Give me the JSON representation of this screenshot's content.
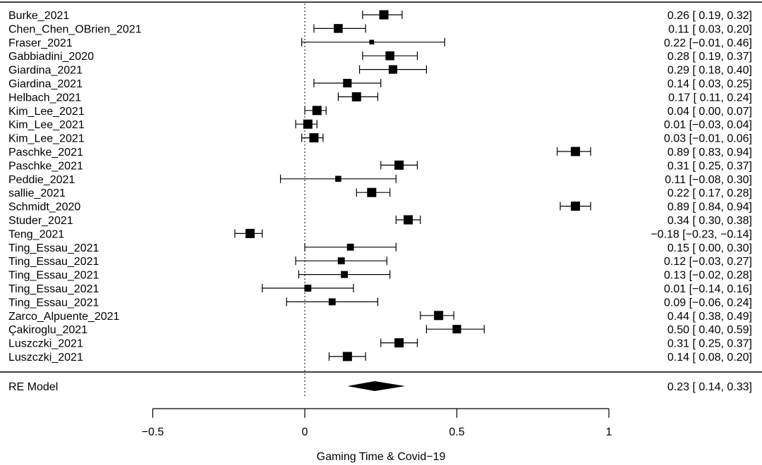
{
  "chart_data": {
    "type": "forest",
    "xlabel": "Gaming Time & Covid−19",
    "xlim": [
      -0.5,
      1
    ],
    "xticks": [
      {
        "value": -0.5,
        "label": "−0.5"
      },
      {
        "value": 0,
        "label": "0"
      },
      {
        "value": 0.5,
        "label": "0.5"
      },
      {
        "value": 1,
        "label": "1"
      }
    ],
    "reference_line": 0,
    "studies": [
      {
        "label": "Burke_2021",
        "est": 0.26,
        "lo": 0.19,
        "hi": 0.32,
        "ci_text": "0.26 [ 0.19,  0.32]",
        "weight": 1.0
      },
      {
        "label": "Chen_Chen_OBrien_2021",
        "est": 0.11,
        "lo": 0.03,
        "hi": 0.2,
        "ci_text": "0.11 [ 0.03,  0.20]",
        "weight": 0.95
      },
      {
        "label": "Fraser_2021",
        "est": 0.22,
        "lo": -0.01,
        "hi": 0.46,
        "ci_text": "0.22 [−0.01,  0.46]",
        "weight": 0.3
      },
      {
        "label": "Gabbiadini_2020",
        "est": 0.28,
        "lo": 0.19,
        "hi": 0.37,
        "ci_text": "0.28 [ 0.19,  0.37]",
        "weight": 0.95
      },
      {
        "label": "Giardina_2021",
        "est": 0.29,
        "lo": 0.18,
        "hi": 0.4,
        "ci_text": "0.29 [ 0.18,  0.40]",
        "weight": 0.9
      },
      {
        "label": "Giardina_2021",
        "est": 0.14,
        "lo": 0.03,
        "hi": 0.25,
        "ci_text": "0.14 [ 0.03,  0.25]",
        "weight": 0.9
      },
      {
        "label": "Helbach_2021",
        "est": 0.17,
        "lo": 0.11,
        "hi": 0.24,
        "ci_text": "0.17 [ 0.11,  0.24]",
        "weight": 1.0
      },
      {
        "label": "Kim_Lee_2021",
        "est": 0.04,
        "lo": 0.0,
        "hi": 0.07,
        "ci_text": "0.04 [ 0.00,  0.07]",
        "weight": 1.0
      },
      {
        "label": "Kim_Lee_2021",
        "est": 0.01,
        "lo": -0.03,
        "hi": 0.04,
        "ci_text": "0.01 [−0.03,  0.04]",
        "weight": 1.0
      },
      {
        "label": "Kim_Lee_2021",
        "est": 0.03,
        "lo": -0.01,
        "hi": 0.06,
        "ci_text": "0.03 [−0.01,  0.06]",
        "weight": 1.0
      },
      {
        "label": "Paschke_2021",
        "est": 0.89,
        "lo": 0.83,
        "hi": 0.94,
        "ci_text": "0.89 [ 0.83,  0.94]",
        "weight": 1.0
      },
      {
        "label": "Paschke_2021",
        "est": 0.31,
        "lo": 0.25,
        "hi": 0.37,
        "ci_text": "0.31 [ 0.25,  0.37]",
        "weight": 1.0
      },
      {
        "label": "Peddie_2021",
        "est": 0.11,
        "lo": -0.08,
        "hi": 0.3,
        "ci_text": "0.11 [−0.08,  0.30]",
        "weight": 0.5
      },
      {
        "label": "sallie_2021",
        "est": 0.22,
        "lo": 0.17,
        "hi": 0.28,
        "ci_text": "0.22 [ 0.17,  0.28]",
        "weight": 1.0
      },
      {
        "label": "Schmidt_2020",
        "est": 0.89,
        "lo": 0.84,
        "hi": 0.94,
        "ci_text": "0.89 [ 0.84,  0.94]",
        "weight": 1.0
      },
      {
        "label": "Studer_2021",
        "est": 0.34,
        "lo": 0.3,
        "hi": 0.38,
        "ci_text": "0.34 [ 0.30,  0.38]",
        "weight": 1.0
      },
      {
        "label": "Teng_2021",
        "est": -0.18,
        "lo": -0.23,
        "hi": -0.14,
        "ci_text": "−0.18 [−0.23, −0.14]",
        "weight": 1.0
      },
      {
        "label": "Ting_Essau_2021",
        "est": 0.15,
        "lo": 0.0,
        "hi": 0.3,
        "ci_text": "0.15 [ 0.00,  0.30]",
        "weight": 0.65
      },
      {
        "label": "Ting_Essau_2021",
        "est": 0.12,
        "lo": -0.03,
        "hi": 0.27,
        "ci_text": "0.12 [−0.03,  0.27]",
        "weight": 0.65
      },
      {
        "label": "Ting_Essau_2021",
        "est": 0.13,
        "lo": -0.02,
        "hi": 0.28,
        "ci_text": "0.13 [−0.02,  0.28]",
        "weight": 0.65
      },
      {
        "label": "Ting_Essau_2021",
        "est": 0.01,
        "lo": -0.14,
        "hi": 0.16,
        "ci_text": "0.01 [−0.14,  0.16]",
        "weight": 0.65
      },
      {
        "label": "Ting_Essau_2021",
        "est": 0.09,
        "lo": -0.06,
        "hi": 0.24,
        "ci_text": "0.09 [−0.06,  0.24]",
        "weight": 0.65
      },
      {
        "label": "Zarco_Alpuente_2021",
        "est": 0.44,
        "lo": 0.38,
        "hi": 0.49,
        "ci_text": "0.44 [ 0.38,  0.49]",
        "weight": 1.0
      },
      {
        "label": "Çakiroglu_2021",
        "est": 0.5,
        "lo": 0.4,
        "hi": 0.59,
        "ci_text": "0.50 [ 0.40,  0.59]",
        "weight": 0.9
      },
      {
        "label": "Luszczki_2021",
        "est": 0.31,
        "lo": 0.25,
        "hi": 0.37,
        "ci_text": "0.31 [ 0.25,  0.37]",
        "weight": 1.0
      },
      {
        "label": "Luszczki_2021",
        "est": 0.14,
        "lo": 0.08,
        "hi": 0.2,
        "ci_text": "0.14 [ 0.08,  0.20]",
        "weight": 1.0
      }
    ],
    "summary": {
      "label": "RE Model",
      "est": 0.23,
      "lo": 0.14,
      "hi": 0.33,
      "ci_text": "0.23 [ 0.14,  0.33]"
    }
  }
}
